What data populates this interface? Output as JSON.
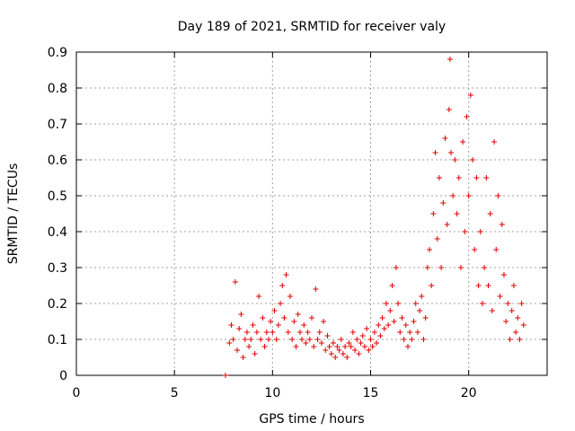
{
  "chart_data": {
    "type": "scatter",
    "title": "Day 189 of 2021, SRMTID for receiver valy",
    "xlabel": "GPS time / hours",
    "ylabel": "SRMTID / TECUs",
    "xlim": [
      0,
      24
    ],
    "ylim": [
      0,
      0.9
    ],
    "xticks": [
      "0",
      "5",
      "10",
      "15",
      "20"
    ],
    "xtick_values": [
      0,
      5,
      10,
      15,
      20
    ],
    "yticks": [
      "0",
      "0.1",
      "0.2",
      "0.3",
      "0.4",
      "0.5",
      "0.6",
      "0.7",
      "0.8",
      "0.9"
    ],
    "ytick_values": [
      0,
      0.1,
      0.2,
      0.3,
      0.4,
      0.5,
      0.6,
      0.7,
      0.8,
      0.9
    ],
    "grid": true,
    "marker": "+",
    "color": "#e00000",
    "series": [
      {
        "name": "SRMTID",
        "points": [
          [
            7.6,
            0.0
          ],
          [
            7.8,
            0.09
          ],
          [
            7.9,
            0.14
          ],
          [
            8.0,
            0.1
          ],
          [
            8.1,
            0.26
          ],
          [
            8.2,
            0.07
          ],
          [
            8.3,
            0.13
          ],
          [
            8.4,
            0.17
          ],
          [
            8.5,
            0.05
          ],
          [
            8.6,
            0.1
          ],
          [
            8.7,
            0.12
          ],
          [
            8.8,
            0.08
          ],
          [
            8.9,
            0.1
          ],
          [
            9.0,
            0.14
          ],
          [
            9.1,
            0.06
          ],
          [
            9.2,
            0.12
          ],
          [
            9.3,
            0.22
          ],
          [
            9.4,
            0.1
          ],
          [
            9.5,
            0.16
          ],
          [
            9.6,
            0.08
          ],
          [
            9.7,
            0.12
          ],
          [
            9.8,
            0.1
          ],
          [
            9.9,
            0.15
          ],
          [
            10.0,
            0.12
          ],
          [
            10.1,
            0.18
          ],
          [
            10.2,
            0.1
          ],
          [
            10.3,
            0.14
          ],
          [
            10.4,
            0.2
          ],
          [
            10.5,
            0.25
          ],
          [
            10.6,
            0.16
          ],
          [
            10.7,
            0.28
          ],
          [
            10.8,
            0.12
          ],
          [
            10.9,
            0.22
          ],
          [
            11.0,
            0.1
          ],
          [
            11.1,
            0.15
          ],
          [
            11.2,
            0.08
          ],
          [
            11.3,
            0.17
          ],
          [
            11.4,
            0.12
          ],
          [
            11.5,
            0.1
          ],
          [
            11.6,
            0.14
          ],
          [
            11.7,
            0.09
          ],
          [
            11.8,
            0.12
          ],
          [
            11.9,
            0.1
          ],
          [
            12.0,
            0.16
          ],
          [
            12.1,
            0.08
          ],
          [
            12.2,
            0.24
          ],
          [
            12.3,
            0.1
          ],
          [
            12.4,
            0.12
          ],
          [
            12.5,
            0.09
          ],
          [
            12.6,
            0.15
          ],
          [
            12.7,
            0.07
          ],
          [
            12.8,
            0.11
          ],
          [
            12.9,
            0.08
          ],
          [
            13.0,
            0.06
          ],
          [
            13.1,
            0.09
          ],
          [
            13.2,
            0.05
          ],
          [
            13.3,
            0.08
          ],
          [
            13.4,
            0.07
          ],
          [
            13.5,
            0.1
          ],
          [
            13.6,
            0.06
          ],
          [
            13.7,
            0.08
          ],
          [
            13.8,
            0.05
          ],
          [
            13.9,
            0.09
          ],
          [
            14.0,
            0.08
          ],
          [
            14.1,
            0.12
          ],
          [
            14.2,
            0.07
          ],
          [
            14.3,
            0.1
          ],
          [
            14.4,
            0.06
          ],
          [
            14.5,
            0.09
          ],
          [
            14.6,
            0.11
          ],
          [
            14.7,
            0.08
          ],
          [
            14.8,
            0.13
          ],
          [
            14.9,
            0.07
          ],
          [
            15.0,
            0.1
          ],
          [
            15.1,
            0.08
          ],
          [
            15.2,
            0.12
          ],
          [
            15.3,
            0.09
          ],
          [
            15.4,
            0.14
          ],
          [
            15.5,
            0.11
          ],
          [
            15.6,
            0.16
          ],
          [
            15.7,
            0.13
          ],
          [
            15.8,
            0.2
          ],
          [
            15.9,
            0.14
          ],
          [
            16.0,
            0.18
          ],
          [
            16.1,
            0.25
          ],
          [
            16.2,
            0.15
          ],
          [
            16.3,
            0.3
          ],
          [
            16.4,
            0.2
          ],
          [
            16.5,
            0.12
          ],
          [
            16.6,
            0.16
          ],
          [
            16.7,
            0.1
          ],
          [
            16.8,
            0.14
          ],
          [
            16.9,
            0.08
          ],
          [
            17.0,
            0.12
          ],
          [
            17.1,
            0.1
          ],
          [
            17.2,
            0.15
          ],
          [
            17.3,
            0.2
          ],
          [
            17.4,
            0.12
          ],
          [
            17.5,
            0.18
          ],
          [
            17.6,
            0.22
          ],
          [
            17.7,
            0.1
          ],
          [
            17.8,
            0.16
          ],
          [
            17.9,
            0.3
          ],
          [
            18.0,
            0.35
          ],
          [
            18.1,
            0.25
          ],
          [
            18.2,
            0.45
          ],
          [
            18.3,
            0.62
          ],
          [
            18.4,
            0.38
          ],
          [
            18.5,
            0.55
          ],
          [
            18.6,
            0.3
          ],
          [
            18.7,
            0.48
          ],
          [
            18.8,
            0.66
          ],
          [
            18.9,
            0.42
          ],
          [
            19.0,
            0.74
          ],
          [
            19.05,
            0.88
          ],
          [
            19.1,
            0.62
          ],
          [
            19.2,
            0.5
          ],
          [
            19.3,
            0.6
          ],
          [
            19.4,
            0.45
          ],
          [
            19.5,
            0.55
          ],
          [
            19.6,
            0.3
          ],
          [
            19.7,
            0.65
          ],
          [
            19.8,
            0.4
          ],
          [
            19.9,
            0.72
          ],
          [
            20.0,
            0.5
          ],
          [
            20.1,
            0.78
          ],
          [
            20.2,
            0.6
          ],
          [
            20.3,
            0.35
          ],
          [
            20.4,
            0.55
          ],
          [
            20.5,
            0.25
          ],
          [
            20.6,
            0.4
          ],
          [
            20.7,
            0.2
          ],
          [
            20.8,
            0.3
          ],
          [
            20.9,
            0.55
          ],
          [
            21.0,
            0.25
          ],
          [
            21.1,
            0.45
          ],
          [
            21.2,
            0.18
          ],
          [
            21.3,
            0.65
          ],
          [
            21.4,
            0.35
          ],
          [
            21.5,
            0.5
          ],
          [
            21.6,
            0.22
          ],
          [
            21.7,
            0.42
          ],
          [
            21.8,
            0.28
          ],
          [
            21.9,
            0.15
          ],
          [
            22.0,
            0.2
          ],
          [
            22.1,
            0.1
          ],
          [
            22.2,
            0.18
          ],
          [
            22.3,
            0.25
          ],
          [
            22.4,
            0.12
          ],
          [
            22.5,
            0.16
          ],
          [
            22.6,
            0.1
          ],
          [
            22.7,
            0.2
          ],
          [
            22.8,
            0.14
          ]
        ]
      }
    ]
  }
}
